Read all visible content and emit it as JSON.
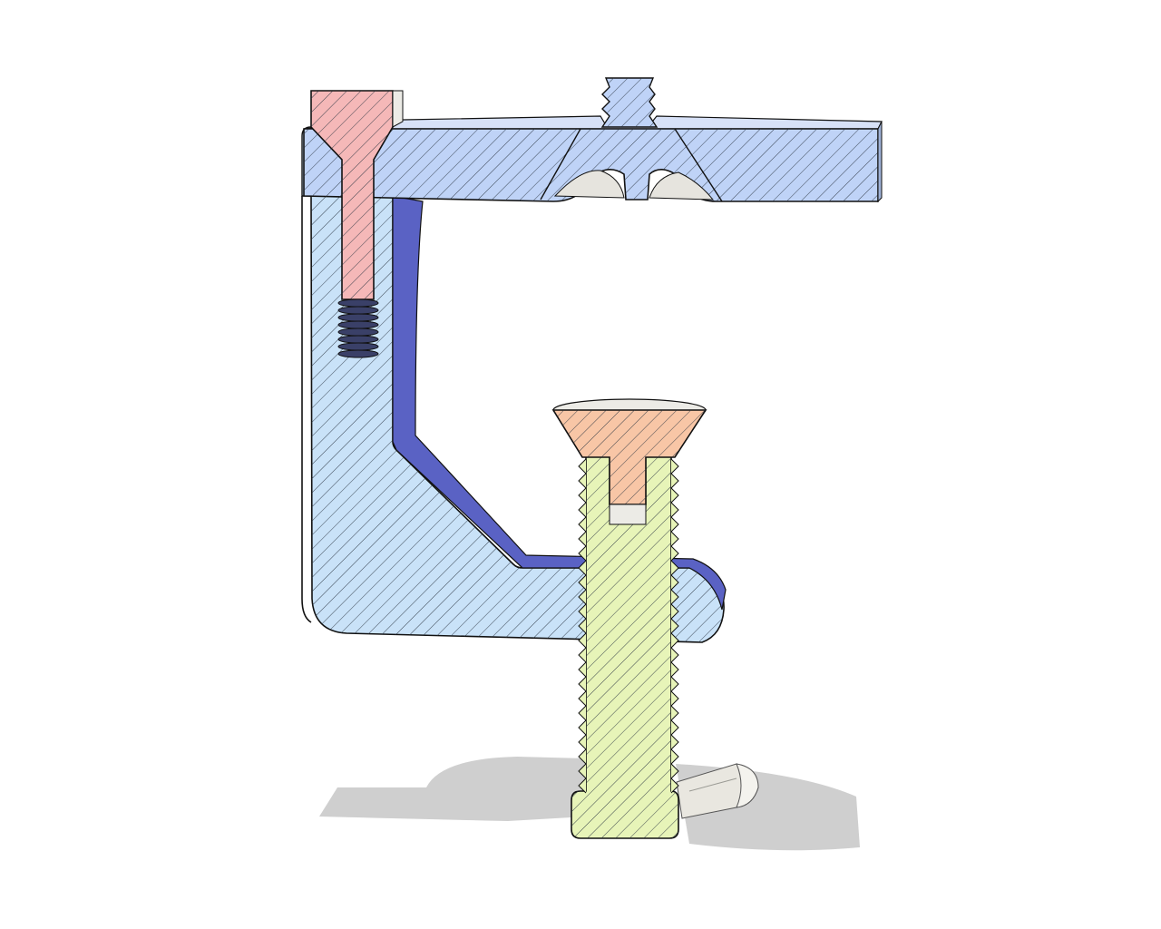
{
  "scene": {
    "kind": "cad-section-view",
    "background": "#ffffff",
    "parts": [
      {
        "name": "clamp-frame",
        "fill": "#c9e2f8",
        "hatch": "#2a3440"
      },
      {
        "name": "top-bar",
        "fill": "#bfd3f7",
        "hatch": "#2a3440"
      },
      {
        "name": "cap-screw",
        "fill": "#f5b8b8",
        "hatch": "#2a3440"
      },
      {
        "name": "clamp-screw",
        "fill": "#e7f4b8",
        "hatch": "#2a3440"
      },
      {
        "name": "swivel-pad",
        "fill": "#f8c6a6",
        "hatch": "#2a3440"
      },
      {
        "name": "tommy-bar",
        "fill": "#e9e7e0",
        "hatch": "none"
      }
    ],
    "inner_wall_color": "#5a62c4",
    "shadow_color": "#cfcfcf",
    "outline_color": "#111111"
  }
}
